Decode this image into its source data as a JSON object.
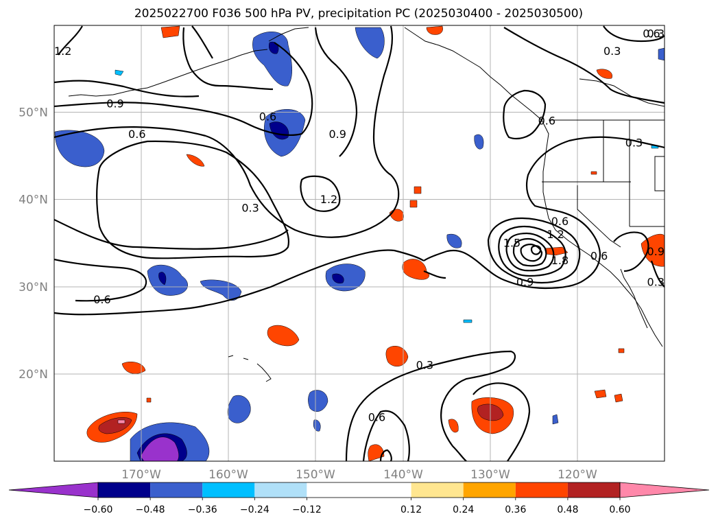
{
  "title": "2025022700 F036 500 hPa PV, precipitation PC (2025030400 - 2025030500)",
  "chart_data": {
    "type": "heatmap",
    "title": "2025022700 F036 500 hPa PV, precipitation PC (2025030400 - 2025030500)",
    "map_extent": {
      "lon": [
        -180,
        -110
      ],
      "lat": [
        10,
        60
      ]
    },
    "grid": true,
    "lat_ticks": [
      {
        "value": 20,
        "label": "20°N"
      },
      {
        "value": 30,
        "label": "30°N"
      },
      {
        "value": 40,
        "label": "40°N"
      },
      {
        "value": 50,
        "label": "50°N"
      }
    ],
    "lon_ticks": [
      {
        "value": -170,
        "label": "170°W"
      },
      {
        "value": -160,
        "label": "160°W"
      },
      {
        "value": -150,
        "label": "150°W"
      },
      {
        "value": -140,
        "label": "140°W"
      },
      {
        "value": -130,
        "label": "130°W"
      },
      {
        "value": -120,
        "label": "120°W"
      }
    ],
    "colorbar": {
      "levels": [
        -0.6,
        -0.48,
        -0.36,
        -0.24,
        -0.12,
        0.12,
        0.24,
        0.36,
        0.48,
        0.6
      ],
      "tick_labels": [
        "−0.60",
        "−0.48",
        "−0.36",
        "−0.24",
        "−0.12",
        "0.12",
        "0.24",
        "0.36",
        "0.48",
        "0.60"
      ],
      "colors": [
        "#9932cc",
        "#00008b",
        "#3a5fcd",
        "#00bfff",
        "#b0e0f8",
        "#ffffff",
        "#ffe690",
        "#ffa500",
        "#ff4500",
        "#b22222",
        "#ff88aa"
      ],
      "extend": "both"
    },
    "pv_contour_labels": [
      {
        "text": "1.2",
        "lon": -179,
        "lat": 57
      },
      {
        "text": "0.9",
        "lon": -173,
        "lat": 51
      },
      {
        "text": "0.6",
        "lon": -155.5,
        "lat": 49.5
      },
      {
        "text": "0.6",
        "lon": -170.5,
        "lat": 47.5
      },
      {
        "text": "0.9",
        "lon": -147.5,
        "lat": 47.5
      },
      {
        "text": "0.3",
        "lon": -157.5,
        "lat": 39
      },
      {
        "text": "1.2",
        "lon": -148.5,
        "lat": 40
      },
      {
        "text": "0.6",
        "lon": -174.5,
        "lat": 28.5
      },
      {
        "text": "0.6",
        "lon": -123.5,
        "lat": 49
      },
      {
        "text": "0.3",
        "lon": -113.5,
        "lat": 46.5
      },
      {
        "text": "0.3",
        "lon": -116,
        "lat": 57
      },
      {
        "text": "1.5",
        "lon": -127.5,
        "lat": 35
      },
      {
        "text": "1.2",
        "lon": -122.5,
        "lat": 36
      },
      {
        "text": "0.6",
        "lon": -122,
        "lat": 37.5
      },
      {
        "text": "1.8",
        "lon": -122,
        "lat": 33
      },
      {
        "text": "0.9",
        "lon": -126,
        "lat": 30.5
      },
      {
        "text": "0.6",
        "lon": -117.5,
        "lat": 33.5
      },
      {
        "text": "0.9",
        "lon": -111,
        "lat": 34
      },
      {
        "text": "0.3",
        "lon": -111,
        "lat": 30.5
      },
      {
        "text": "0.3",
        "lon": -137.5,
        "lat": 21
      },
      {
        "text": "0.6",
        "lon": -143,
        "lat": 15
      },
      {
        "text": "0.3",
        "lon": -111,
        "lat": 59
      },
      {
        "text": "0.6",
        "lon": -111.5,
        "lat": 59
      }
    ]
  }
}
